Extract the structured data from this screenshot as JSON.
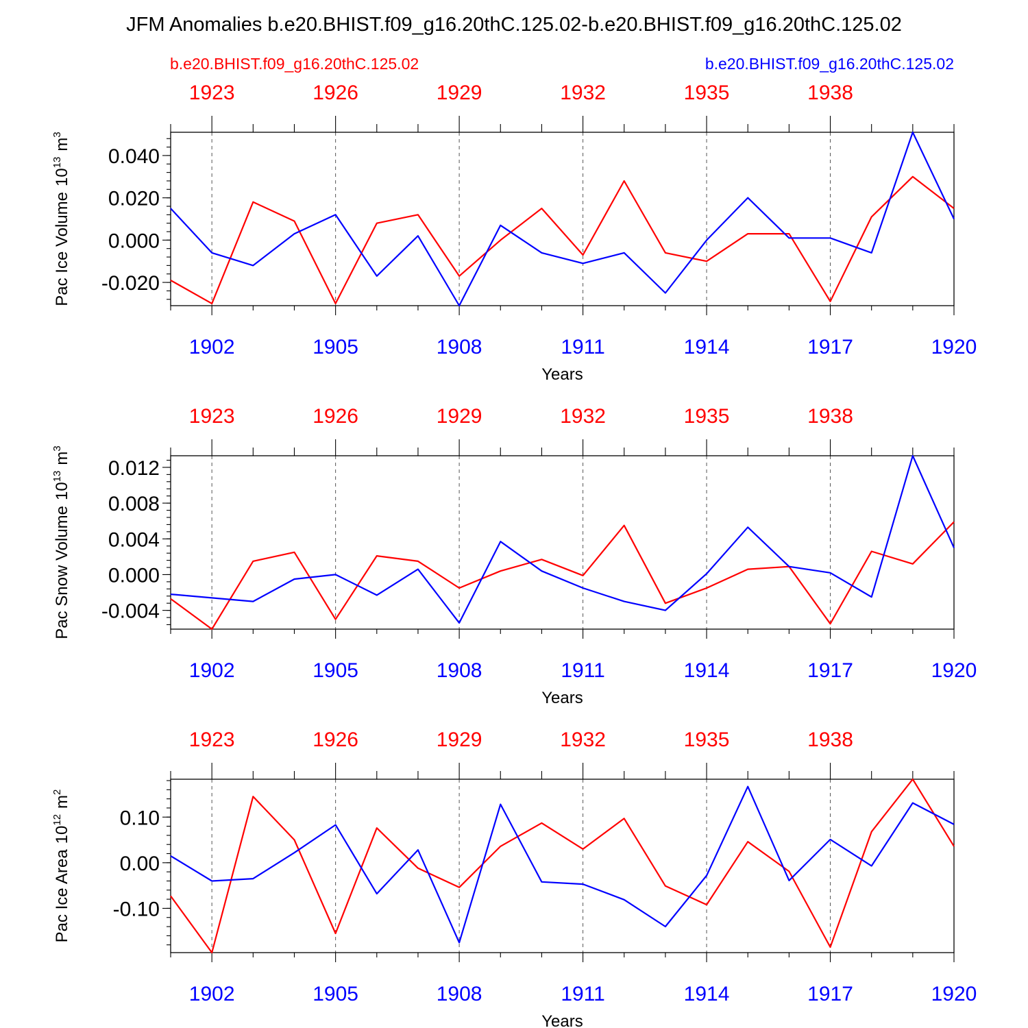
{
  "header": {
    "title": "JFM Anomalies b.e20.BHIST.f09_g16.20thC.125.02-b.e20.BHIST.f09_g16.20thC.125.02",
    "left_case": "b.e20.BHIST.f09_g16.20thC.125.02",
    "right_case": "b.e20.BHIST.f09_g16.20thC.125.02"
  },
  "colors": {
    "case1": "#ff0000",
    "case2": "#0000ff",
    "axis": "#000000"
  },
  "chart_data": [
    {
      "type": "line",
      "ylabel": "Pac Ice Volume",
      "yunit_base": "10",
      "yunit_exp": "13",
      "yunit_tail": "m",
      "yunit_tail_exp": "3",
      "xlabel": "Years",
      "ylim": [
        -0.031,
        0.051
      ],
      "yticks": [
        -0.02,
        0.0,
        0.02,
        0.04
      ],
      "ytick_labels": [
        "-0.020",
        "0.000",
        "0.020",
        "0.040"
      ],
      "yminor_step": 0.004,
      "x_bottom": [
        1901,
        1902,
        1903,
        1904,
        1905,
        1906,
        1907,
        1908,
        1909,
        1910,
        1911,
        1912,
        1913,
        1914,
        1915,
        1916,
        1917,
        1918,
        1919,
        1920
      ],
      "x_top": [
        1922,
        1923,
        1924,
        1925,
        1926,
        1927,
        1928,
        1929,
        1930,
        1931,
        1932,
        1933,
        1934,
        1935,
        1936,
        1937,
        1938,
        1939,
        1940,
        1941
      ],
      "bottom_tick_labels": [
        "1902",
        "1905",
        "1908",
        "1911",
        "1914",
        "1917",
        "1920"
      ],
      "top_tick_labels": [
        "1923",
        "1926",
        "1929",
        "1932",
        "1935",
        "1938"
      ],
      "series": [
        {
          "name": "b.e20.BHIST.f09_g16.20thC.125.02 (1922-1941)",
          "color": "red",
          "values": [
            -0.019,
            -0.03,
            0.018,
            0.009,
            -0.03,
            0.008,
            0.012,
            -0.017,
            0.0,
            0.015,
            -0.007,
            0.028,
            -0.006,
            -0.01,
            0.003,
            0.003,
            -0.029,
            0.011,
            0.03,
            0.015
          ]
        },
        {
          "name": "b.e20.BHIST.f09_g16.20thC.125.02 (1901-1920)",
          "color": "blue",
          "values": [
            0.015,
            -0.006,
            -0.012,
            0.003,
            0.012,
            -0.017,
            0.002,
            -0.031,
            0.007,
            -0.006,
            -0.011,
            -0.006,
            -0.025,
            0.0,
            0.02,
            0.001,
            0.001,
            -0.006,
            0.051,
            0.01
          ]
        }
      ]
    },
    {
      "type": "line",
      "ylabel": "Pac Snow Volume",
      "yunit_base": "10",
      "yunit_exp": "13",
      "yunit_tail": "m",
      "yunit_tail_exp": "3",
      "xlabel": "Years",
      "ylim": [
        -0.0061,
        0.0133
      ],
      "yticks": [
        -0.004,
        0.0,
        0.004,
        0.008,
        0.012
      ],
      "ytick_labels": [
        "-0.004",
        "0.000",
        "0.004",
        "0.008",
        "0.012"
      ],
      "yminor_step": 0.0008,
      "x_bottom": [
        1901,
        1902,
        1903,
        1904,
        1905,
        1906,
        1907,
        1908,
        1909,
        1910,
        1911,
        1912,
        1913,
        1914,
        1915,
        1916,
        1917,
        1918,
        1919,
        1920
      ],
      "x_top": [
        1922,
        1923,
        1924,
        1925,
        1926,
        1927,
        1928,
        1929,
        1930,
        1931,
        1932,
        1933,
        1934,
        1935,
        1936,
        1937,
        1938,
        1939,
        1940,
        1941
      ],
      "bottom_tick_labels": [
        "1902",
        "1905",
        "1908",
        "1911",
        "1914",
        "1917",
        "1920"
      ],
      "top_tick_labels": [
        "1923",
        "1926",
        "1929",
        "1932",
        "1935",
        "1938"
      ],
      "series": [
        {
          "name": "b.e20.BHIST.f09_g16.20thC.125.02 (1922-1941)",
          "color": "red",
          "values": [
            -0.0027,
            -0.0061,
            0.0015,
            0.0025,
            -0.005,
            0.0021,
            0.0015,
            -0.0015,
            0.0004,
            0.0017,
            -0.0001,
            0.0055,
            -0.0032,
            -0.0015,
            0.0006,
            0.0009,
            -0.0055,
            0.0026,
            0.0012,
            0.0059
          ]
        },
        {
          "name": "b.e20.BHIST.f09_g16.20thC.125.02 (1901-1920)",
          "color": "blue",
          "values": [
            -0.0022,
            -0.0026,
            -0.003,
            -0.0005,
            0.0,
            -0.0023,
            0.0006,
            -0.0054,
            0.0037,
            0.0004,
            -0.0015,
            -0.003,
            -0.004,
            0.0001,
            0.0053,
            0.0009,
            0.0002,
            -0.0025,
            0.0133,
            0.003
          ]
        }
      ]
    },
    {
      "type": "line",
      "ylabel": "Pac Ice Area",
      "yunit_base": "10",
      "yunit_exp": "12",
      "yunit_tail": "m",
      "yunit_tail_exp": "2",
      "xlabel": "Years",
      "ylim": [
        -0.197,
        0.183
      ],
      "yticks": [
        -0.1,
        0.0,
        0.1
      ],
      "ytick_labels": [
        "-0.10",
        "0.00",
        "0.10"
      ],
      "yminor_step": 0.02,
      "x_bottom": [
        1901,
        1902,
        1903,
        1904,
        1905,
        1906,
        1907,
        1908,
        1909,
        1910,
        1911,
        1912,
        1913,
        1914,
        1915,
        1916,
        1917,
        1918,
        1919,
        1920
      ],
      "x_top": [
        1922,
        1923,
        1924,
        1925,
        1926,
        1927,
        1928,
        1929,
        1930,
        1931,
        1932,
        1933,
        1934,
        1935,
        1936,
        1937,
        1938,
        1939,
        1940,
        1941
      ],
      "bottom_tick_labels": [
        "1902",
        "1905",
        "1908",
        "1911",
        "1914",
        "1917",
        "1920"
      ],
      "top_tick_labels": [
        "1923",
        "1926",
        "1929",
        "1932",
        "1935",
        "1938"
      ],
      "series": [
        {
          "name": "b.e20.BHIST.f09_g16.20thC.125.02 (1922-1941)",
          "color": "red",
          "values": [
            -0.073,
            -0.197,
            0.145,
            0.05,
            -0.155,
            0.076,
            -0.012,
            -0.054,
            0.036,
            0.087,
            0.03,
            0.097,
            -0.051,
            -0.092,
            0.046,
            -0.019,
            -0.185,
            0.068,
            0.183,
            0.036
          ]
        },
        {
          "name": "b.e20.BHIST.f09_g16.20thC.125.02 (1901-1920)",
          "color": "blue",
          "values": [
            0.015,
            -0.04,
            -0.035,
            0.022,
            0.083,
            -0.068,
            0.028,
            -0.175,
            0.128,
            -0.042,
            -0.047,
            -0.081,
            -0.14,
            -0.028,
            0.167,
            -0.039,
            0.051,
            -0.007,
            0.131,
            0.084
          ]
        }
      ]
    }
  ]
}
